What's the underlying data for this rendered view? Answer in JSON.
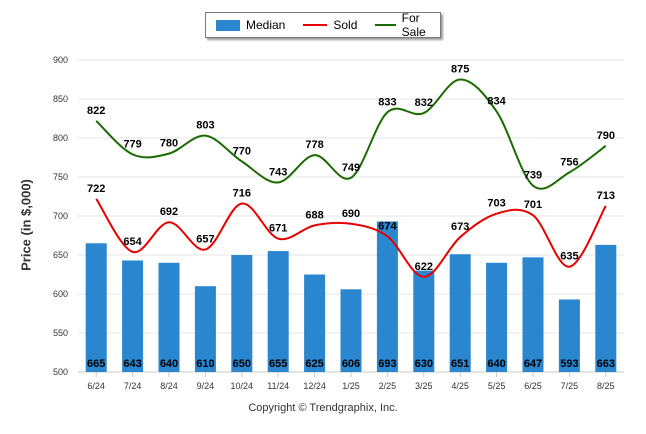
{
  "colors": {
    "median": "#2986CF",
    "sold": "#E80000",
    "for_sale": "#1A6B00",
    "grid": "#e6e6e6"
  },
  "legend": {
    "median": "Median",
    "sold": "Sold",
    "for_sale": "For Sale"
  },
  "footer": "Copyright © Trendgraphix, Inc.",
  "chart_data": {
    "type": "bar",
    "categories": [
      "6/24",
      "7/24",
      "8/24",
      "9/24",
      "10/24",
      "11/24",
      "12/24",
      "1/25",
      "2/25",
      "3/25",
      "4/25",
      "5/25",
      "6/25",
      "7/25",
      "8/25"
    ],
    "ylabel": "Price (in $,000)",
    "xlabel": "",
    "ylim": [
      500,
      900
    ],
    "yticks": [
      500,
      550,
      600,
      650,
      700,
      750,
      800,
      850,
      900
    ],
    "grid": true,
    "legend_position": "top",
    "series": [
      {
        "name": "Median",
        "type": "bar",
        "values": [
          665,
          643,
          640,
          610,
          650,
          655,
          625,
          606,
          693,
          630,
          651,
          640,
          647,
          593,
          663
        ]
      },
      {
        "name": "Sold",
        "type": "line",
        "values": [
          722,
          654,
          692,
          657,
          716,
          671,
          688,
          690,
          674,
          622,
          673,
          703,
          701,
          635,
          713
        ]
      },
      {
        "name": "For Sale",
        "type": "line",
        "values": [
          822,
          779,
          780,
          803,
          770,
          743,
          778,
          749,
          833,
          832,
          875,
          834,
          739,
          756,
          790
        ]
      }
    ]
  }
}
